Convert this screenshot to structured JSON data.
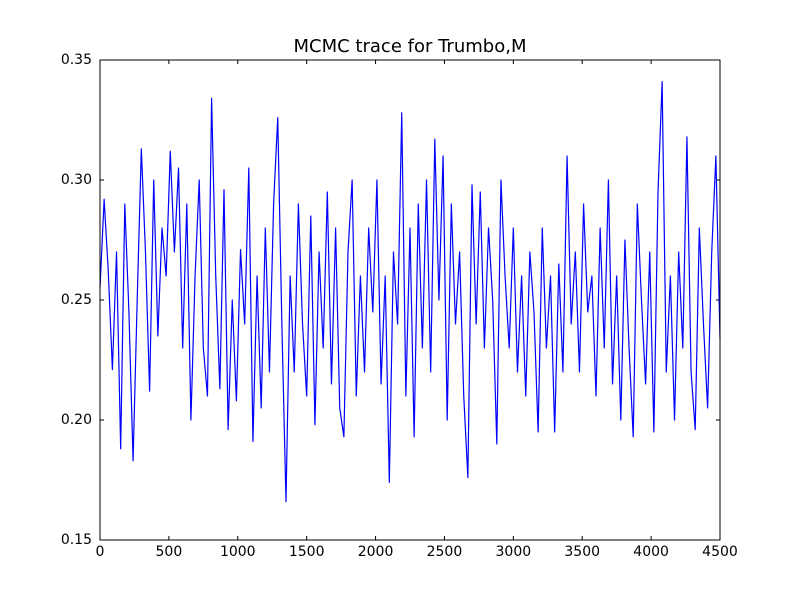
{
  "chart_data": {
    "type": "line",
    "title": "MCMC trace for Trumbo,M",
    "x": [
      0,
      30,
      60,
      90,
      120,
      150,
      180,
      210,
      240,
      270,
      300,
      330,
      360,
      390,
      420,
      450,
      480,
      510,
      540,
      570,
      600,
      630,
      660,
      690,
      720,
      750,
      780,
      810,
      840,
      870,
      900,
      930,
      960,
      990,
      1020,
      1050,
      1080,
      1110,
      1140,
      1170,
      1200,
      1230,
      1260,
      1290,
      1320,
      1350,
      1380,
      1410,
      1440,
      1470,
      1500,
      1530,
      1560,
      1590,
      1620,
      1650,
      1680,
      1710,
      1740,
      1770,
      1800,
      1830,
      1860,
      1890,
      1920,
      1950,
      1980,
      2010,
      2040,
      2070,
      2100,
      2130,
      2160,
      2190,
      2220,
      2250,
      2280,
      2310,
      2340,
      2370,
      2400,
      2430,
      2460,
      2490,
      2520,
      2550,
      2580,
      2610,
      2640,
      2670,
      2700,
      2730,
      2760,
      2790,
      2820,
      2850,
      2880,
      2910,
      2940,
      2970,
      3000,
      3030,
      3060,
      3090,
      3120,
      3150,
      3180,
      3210,
      3240,
      3270,
      3300,
      3330,
      3360,
      3390,
      3420,
      3450,
      3480,
      3510,
      3540,
      3570,
      3600,
      3630,
      3660,
      3690,
      3720,
      3750,
      3780,
      3810,
      3840,
      3870,
      3900,
      3930,
      3960,
      3990,
      4020,
      4050,
      4080,
      4110,
      4140,
      4170,
      4200,
      4230,
      4260,
      4290,
      4320,
      4350,
      4380,
      4410,
      4440,
      4470,
      4500
    ],
    "series": [
      {
        "color": "#0000ff",
        "values": [
          0.255,
          0.292,
          0.262,
          0.221,
          0.27,
          0.188,
          0.29,
          0.245,
          0.183,
          0.25,
          0.313,
          0.27,
          0.212,
          0.3,
          0.235,
          0.28,
          0.26,
          0.312,
          0.27,
          0.305,
          0.23,
          0.29,
          0.2,
          0.26,
          0.3,
          0.23,
          0.21,
          0.334,
          0.26,
          0.213,
          0.296,
          0.196,
          0.25,
          0.208,
          0.271,
          0.24,
          0.305,
          0.191,
          0.26,
          0.205,
          0.28,
          0.22,
          0.29,
          0.326,
          0.24,
          0.166,
          0.26,
          0.22,
          0.29,
          0.24,
          0.21,
          0.285,
          0.198,
          0.27,
          0.23,
          0.295,
          0.215,
          0.28,
          0.205,
          0.193,
          0.27,
          0.3,
          0.21,
          0.26,
          0.22,
          0.28,
          0.245,
          0.3,
          0.215,
          0.26,
          0.174,
          0.27,
          0.24,
          0.328,
          0.21,
          0.28,
          0.193,
          0.29,
          0.23,
          0.3,
          0.22,
          0.317,
          0.25,
          0.31,
          0.2,
          0.29,
          0.24,
          0.27,
          0.21,
          0.176,
          0.298,
          0.24,
          0.295,
          0.23,
          0.28,
          0.25,
          0.19,
          0.3,
          0.26,
          0.23,
          0.28,
          0.22,
          0.26,
          0.21,
          0.27,
          0.245,
          0.195,
          0.28,
          0.23,
          0.26,
          0.195,
          0.265,
          0.22,
          0.31,
          0.24,
          0.27,
          0.22,
          0.29,
          0.245,
          0.26,
          0.21,
          0.28,
          0.23,
          0.3,
          0.215,
          0.26,
          0.2,
          0.275,
          0.23,
          0.193,
          0.29,
          0.25,
          0.215,
          0.27,
          0.195,
          0.295,
          0.341,
          0.22,
          0.26,
          0.2,
          0.27,
          0.23,
          0.318,
          0.22,
          0.196,
          0.28,
          0.24,
          0.205,
          0.27,
          0.31,
          0.234
        ]
      }
    ],
    "xlim": [
      0,
      4500
    ],
    "xticks": [
      0,
      500,
      1000,
      1500,
      2000,
      2500,
      3000,
      3500,
      4000,
      4500
    ],
    "ylim": [
      0.15,
      0.35
    ],
    "yticks": [
      0.15,
      {
        "value": 0.2,
        "label": "0.20"
      },
      0.25,
      {
        "value": 0.3,
        "label": "0.30"
      },
      0.35
    ],
    "grid": false
  }
}
